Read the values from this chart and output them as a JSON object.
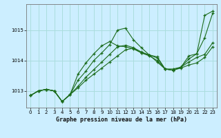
{
  "title": "Graphe pression niveau de la mer (hPa)",
  "background_color": "#cceeff",
  "grid_color": "#aadddd",
  "line_color": "#1a6b1a",
  "xlim": [
    -0.5,
    23.5
  ],
  "ylim": [
    1012.45,
    1015.85
  ],
  "yticks": [
    1013,
    1014,
    1015
  ],
  "xticks": [
    0,
    1,
    2,
    3,
    4,
    5,
    6,
    7,
    8,
    9,
    10,
    11,
    12,
    13,
    14,
    15,
    16,
    17,
    18,
    19,
    20,
    21,
    22,
    23
  ],
  "series": [
    [
      1012.85,
      1013.0,
      1013.05,
      1013.0,
      1012.65,
      1012.88,
      1013.1,
      1013.35,
      1013.55,
      1013.75,
      1013.95,
      1014.15,
      1014.35,
      1014.4,
      1014.25,
      1014.15,
      1014.0,
      1013.72,
      1013.68,
      1013.75,
      1013.85,
      1013.92,
      1014.1,
      1014.45
    ],
    [
      1012.85,
      1013.0,
      1013.05,
      1013.0,
      1012.65,
      1012.88,
      1013.15,
      1013.45,
      1013.7,
      1013.95,
      1014.2,
      1014.45,
      1014.5,
      1014.42,
      1014.28,
      1014.18,
      1014.08,
      1013.72,
      1013.68,
      1013.78,
      1013.95,
      1014.1,
      1014.2,
      1014.58
    ],
    [
      1012.85,
      1013.0,
      1013.05,
      1013.0,
      1012.65,
      1012.88,
      1013.35,
      1013.65,
      1014.0,
      1014.25,
      1014.52,
      1015.0,
      1015.06,
      1014.68,
      1014.42,
      1014.18,
      1014.12,
      1013.72,
      1013.68,
      1013.78,
      1014.05,
      1014.22,
      1014.75,
      1015.55
    ],
    [
      1012.85,
      1013.0,
      1013.05,
      1013.0,
      1012.65,
      1012.88,
      1013.55,
      1013.92,
      1014.22,
      1014.48,
      1014.62,
      1014.48,
      1014.45,
      1014.38,
      1014.25,
      1014.18,
      1013.95,
      1013.72,
      1013.72,
      1013.78,
      1014.15,
      1014.22,
      1015.48,
      1015.62
    ]
  ]
}
